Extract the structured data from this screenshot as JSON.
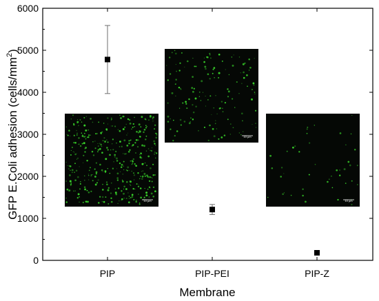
{
  "chart_data": {
    "type": "scatter",
    "xlabel": "Membrane",
    "ylabel": "GFP E.Coli adhesion (cells/mm",
    "ylabel_superscript": "2",
    "ylabel_suffix": ")",
    "categories": [
      "PIP",
      "PIP-PEI",
      "PIP-Z"
    ],
    "series": [
      {
        "values": [
          4780,
          1210,
          180
        ],
        "error": [
          810,
          120,
          40
        ]
      }
    ],
    "ylim": [
      0,
      6000
    ],
    "yticks": [
      0,
      1000,
      2000,
      3000,
      4000,
      5000,
      6000
    ],
    "ytick_labels": [
      "0",
      "1000",
      "2000",
      "3000",
      "4000",
      "5000",
      "6000"
    ],
    "grid": false,
    "legend": "none",
    "insets": [
      {
        "name": "PIP",
        "scale_label": "10 μm",
        "density": "high"
      },
      {
        "name": "PIP-PEI",
        "scale_label": "10 μm",
        "density": "medium"
      },
      {
        "name": "PIP-Z",
        "scale_label": "10 μm",
        "density": "low"
      }
    ],
    "colors": {
      "marker": "#000000",
      "error_bar": "#6e6e6e",
      "inset_background": "#050805",
      "inset_cells": "#39d62a"
    }
  }
}
